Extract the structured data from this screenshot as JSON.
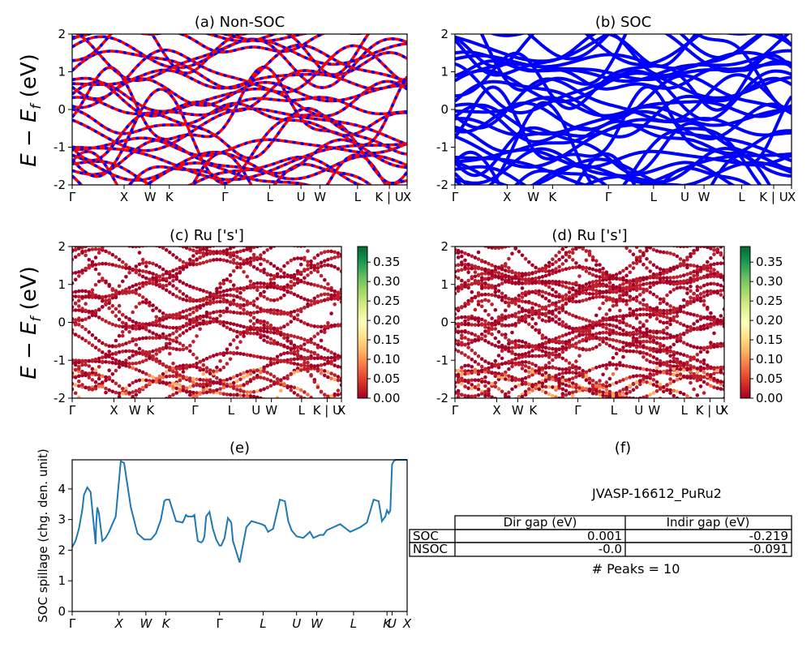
{
  "figure": {
    "common_ylabel_main": "E − E",
    "common_ylabel_sub": "f",
    "common_ylabel_unit": " (eV)",
    "spillage_ylabel": "SOC spillage (chg. den. unit)"
  },
  "colors": {
    "nonsoc_a": "#ff0000",
    "nonsoc_b": "#0000ff",
    "soc": "#0000ff",
    "spillage": "#1f77b4",
    "projection_low": "#a50026",
    "projection_high": "#006837"
  },
  "chart_data": [
    {
      "type": "line",
      "panel": "a",
      "title": "(a) Non-SOC",
      "ylim": [
        -2,
        2
      ],
      "yticks": [
        -2,
        -1,
        0,
        1,
        2
      ],
      "kpoints": [
        {
          "label": "Γ",
          "x": 0.0
        },
        {
          "label": "X",
          "x": 0.155
        },
        {
          "label": "W",
          "x": 0.233
        },
        {
          "label": "K",
          "x": 0.29
        },
        {
          "label": "Γ",
          "x": 0.456
        },
        {
          "label": "L",
          "x": 0.59
        },
        {
          "label": "U",
          "x": 0.683
        },
        {
          "label": "W",
          "x": 0.74
        },
        {
          "label": "L",
          "x": 0.852
        },
        {
          "label": "K | U",
          "x": 0.947
        },
        {
          "label": "X",
          "x": 1.0
        }
      ],
      "series_style": "dashed red/blue overlay"
    },
    {
      "type": "line",
      "panel": "b",
      "title": "(b) SOC",
      "ylim": [
        -2,
        2
      ],
      "yticks": [
        -2,
        -1,
        0,
        1,
        2
      ],
      "kpoints": [
        {
          "label": "Γ",
          "x": 0.0
        },
        {
          "label": "X",
          "x": 0.155
        },
        {
          "label": "W",
          "x": 0.233
        },
        {
          "label": "K",
          "x": 0.29
        },
        {
          "label": "Γ",
          "x": 0.456
        },
        {
          "label": "L",
          "x": 0.59
        },
        {
          "label": "U",
          "x": 0.683
        },
        {
          "label": "W",
          "x": 0.74
        },
        {
          "label": "L",
          "x": 0.852
        },
        {
          "label": "K | U",
          "x": 0.947
        },
        {
          "label": "X",
          "x": 1.0
        }
      ]
    },
    {
      "type": "scatter",
      "panel": "c",
      "title": "(c)  Ru ['s']",
      "ylim": [
        -2,
        2
      ],
      "yticks": [
        -2,
        -1,
        0,
        1,
        2
      ],
      "colorbar": {
        "ticks": [
          "0.00",
          "0.05",
          "0.10",
          "0.15",
          "0.20",
          "0.25",
          "0.30",
          "0.35"
        ],
        "range": [
          0,
          0.39
        ]
      },
      "kpoints": [
        {
          "label": "Γ",
          "x": 0.0
        },
        {
          "label": "X",
          "x": 0.155
        },
        {
          "label": "W",
          "x": 0.233
        },
        {
          "label": "K",
          "x": 0.29
        },
        {
          "label": "Γ",
          "x": 0.456
        },
        {
          "label": "L",
          "x": 0.59
        },
        {
          "label": "U",
          "x": 0.683
        },
        {
          "label": "W",
          "x": 0.74
        },
        {
          "label": "L",
          "x": 0.852
        },
        {
          "label": "K | U",
          "x": 0.947
        },
        {
          "label": "X",
          "x": 1.0
        }
      ]
    },
    {
      "type": "scatter",
      "panel": "d",
      "title": "(d) Ru ['s']",
      "ylim": [
        -2,
        2
      ],
      "yticks": [
        -2,
        -1,
        0,
        1,
        2
      ],
      "colorbar": {
        "ticks": [
          "0.00",
          "0.05",
          "0.10",
          "0.15",
          "0.20",
          "0.25",
          "0.30",
          "0.35"
        ],
        "range": [
          0,
          0.39
        ]
      },
      "kpoints": [
        {
          "label": "Γ",
          "x": 0.0
        },
        {
          "label": "X",
          "x": 0.155
        },
        {
          "label": "W",
          "x": 0.233
        },
        {
          "label": "K",
          "x": 0.29
        },
        {
          "label": "Γ",
          "x": 0.456
        },
        {
          "label": "L",
          "x": 0.59
        },
        {
          "label": "U",
          "x": 0.683
        },
        {
          "label": "W",
          "x": 0.74
        },
        {
          "label": "L",
          "x": 0.852
        },
        {
          "label": "K | U",
          "x": 0.947
        },
        {
          "label": "X",
          "x": 1.0
        }
      ]
    },
    {
      "type": "line",
      "panel": "e",
      "title": "(e)",
      "ylabel": "SOC spillage (chg. den. unit)",
      "ylim": [
        0,
        4.95
      ],
      "yticks": [
        0,
        1,
        2,
        3,
        4
      ],
      "xticks": [
        "Γ",
        "X",
        "W",
        "K",
        "Γ",
        "L",
        "U",
        "W",
        "L",
        "K",
        "U",
        "X"
      ],
      "xtick_pos": [
        0.0,
        0.14,
        0.22,
        0.28,
        0.44,
        0.57,
        0.67,
        0.73,
        0.84,
        0.94,
        0.955,
        1.0
      ],
      "x": [
        0.0,
        0.01,
        0.02,
        0.03,
        0.035,
        0.045,
        0.055,
        0.07,
        0.072,
        0.075,
        0.08,
        0.09,
        0.1,
        0.11,
        0.13,
        0.145,
        0.155,
        0.175,
        0.195,
        0.215,
        0.235,
        0.25,
        0.265,
        0.275,
        0.28,
        0.29,
        0.31,
        0.33,
        0.34,
        0.345,
        0.36,
        0.365,
        0.37,
        0.375,
        0.385,
        0.39,
        0.395,
        0.4,
        0.41,
        0.42,
        0.43,
        0.44,
        0.445,
        0.455,
        0.465,
        0.475,
        0.48,
        0.5,
        0.52,
        0.535,
        0.55,
        0.565,
        0.575,
        0.585,
        0.6,
        0.62,
        0.635,
        0.645,
        0.655,
        0.67,
        0.69,
        0.71,
        0.72,
        0.74,
        0.75,
        0.76,
        0.78,
        0.8,
        0.83,
        0.86,
        0.88,
        0.9,
        0.915,
        0.925,
        0.935,
        0.94,
        0.945,
        0.95,
        0.955,
        0.96,
        0.965,
        0.97,
        0.975,
        0.985,
        0.995,
        1.0
      ],
      "y": [
        2.1,
        2.3,
        2.7,
        3.3,
        3.8,
        4.05,
        3.9,
        2.2,
        2.9,
        3.4,
        3.2,
        2.3,
        2.4,
        2.6,
        3.1,
        4.9,
        4.85,
        3.4,
        2.55,
        2.35,
        2.35,
        2.55,
        3.0,
        3.6,
        3.65,
        3.65,
        2.95,
        2.9,
        3.15,
        3.1,
        3.1,
        3.15,
        2.7,
        2.3,
        2.25,
        2.3,
        2.45,
        3.1,
        3.25,
        2.7,
        2.35,
        2.15,
        2.15,
        2.4,
        3.05,
        2.9,
        2.3,
        1.6,
        2.75,
        2.95,
        2.9,
        2.85,
        2.8,
        2.6,
        2.7,
        3.65,
        3.6,
        2.95,
        2.65,
        2.45,
        2.4,
        2.6,
        2.4,
        2.5,
        2.5,
        2.65,
        2.75,
        2.85,
        2.6,
        2.75,
        2.9,
        3.65,
        3.6,
        2.95,
        3.1,
        3.3,
        3.2,
        3.3,
        4.8,
        4.9,
        4.95,
        4.95,
        4.95,
        4.95,
        4.95,
        4.95
      ]
    },
    {
      "type": "table",
      "panel": "f",
      "title": "(f)",
      "subtitle": "JVASP-16612_PuRu2",
      "columns": [
        "Dir gap (eV)",
        "Indir gap (eV)"
      ],
      "rows": [
        {
          "label": "SOC",
          "values": [
            "0.001",
            "-0.219"
          ]
        },
        {
          "label": "NSOC",
          "values": [
            "-0.0",
            "-0.091"
          ]
        }
      ],
      "footer": "# Peaks = 10"
    }
  ]
}
